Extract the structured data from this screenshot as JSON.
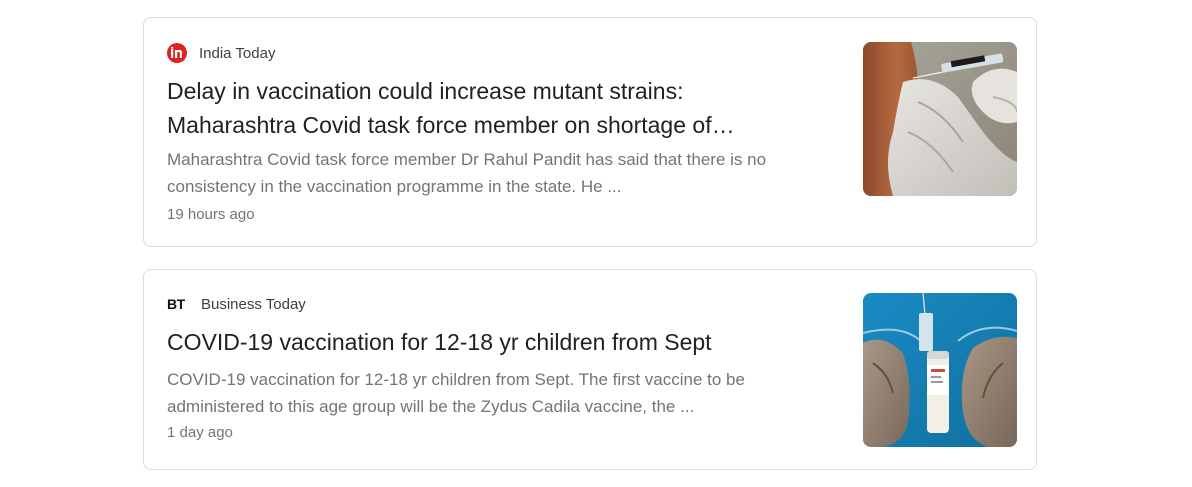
{
  "articles": [
    {
      "source": "India Today",
      "source_logo_icon": "india-today-logo-icon",
      "headline": "Delay in vaccination could increase mutant strains: Maharashtra Covid task force member on shortage of…",
      "snippet": "Maharashtra Covid task force member Dr Rahul Pandit has said that there is no consistency in the vaccination programme in the state. He ...",
      "time": "19 hours ago",
      "thumbnail_icon": "vaccine-injection-thumbnail"
    },
    {
      "source": "Business Today",
      "source_logo_text": "BT",
      "source_logo_icon": "business-today-logo-icon",
      "headline": "COVID-19 vaccination for 12-18 yr children from Sept",
      "snippet": "COVID-19 vaccination for 12-18 yr children from Sept. The first vaccine to be administered to this age group will be the Zydus Cadila vaccine, the ...",
      "time": "1 day ago",
      "thumbnail_icon": "vaccine-vial-thumbnail"
    }
  ],
  "colors": {
    "card_border": "#dadce0",
    "headline": "#202124",
    "meta": "#70757a",
    "india_today_red": "#e0231e"
  }
}
